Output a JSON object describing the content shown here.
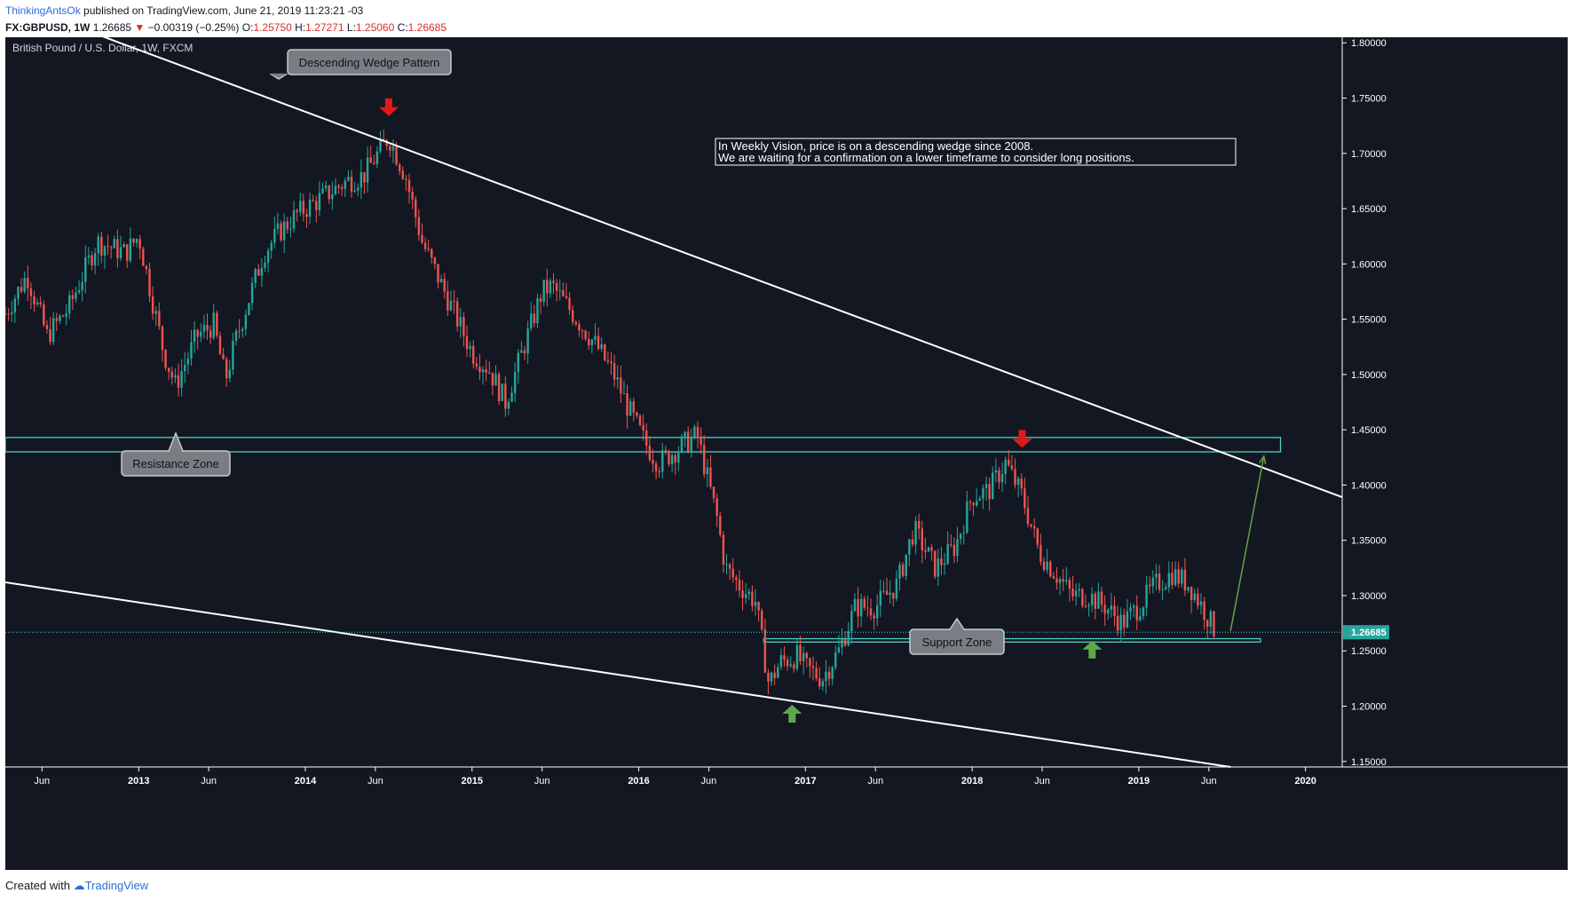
{
  "header": {
    "author": "ThinkingAntsOk",
    "published": "published on TradingView.com, June 21, 2019 11:23:21 -03",
    "symbol": "FX:GBPUSD, 1W",
    "last": "1.26685",
    "change_arrow": "▼",
    "change": "−0.00319 (−0.25%)",
    "o_label": "O:",
    "o": "1.25750",
    "h_label": "H:",
    "h": "1.27271",
    "l_label": "L:",
    "l": "1.25060",
    "c_label": "C:",
    "c": "1.26685"
  },
  "chart_title": "British Pound / U.S. Dollar, 1W, FXCM",
  "footer": {
    "created": "Created with",
    "brand": "TradingView"
  },
  "colors": {
    "background": "#131722",
    "up": "#26a69a",
    "down": "#ef5350",
    "zone": "#4dd0c4",
    "trend_line": "#ffffff",
    "arrow_down": "#e01a1a",
    "arrow_up": "#5fa84a",
    "projection": "#6a9f45",
    "callout_bg": "#7a7d84"
  },
  "annotations": {
    "wedge_label": "Descending Wedge Pattern",
    "resistance_label": "Resistance Zone",
    "support_label": "Support Zone",
    "note_line1": "In Weekly Vision, price is on a descending wedge since 2008.",
    "note_line2": "We are waiting for a confirmation on a lower timeframe to consider long positions."
  },
  "chart_data": {
    "type": "candlestick",
    "symbol": "GBPUSD",
    "timeframe": "1W",
    "ylim": [
      1.145,
      1.805
    ],
    "y_ticks": [
      "1.80000",
      "1.75000",
      "1.70000",
      "1.65000",
      "1.60000",
      "1.55000",
      "1.50000",
      "1.45000",
      "1.40000",
      "1.35000",
      "1.30000",
      "1.25000",
      "1.20000",
      "1.15000"
    ],
    "x_ticks": [
      "Jun",
      "2013",
      "Jun",
      "2014",
      "Jun",
      "2015",
      "Jun",
      "2016",
      "Jun",
      "2017",
      "Jun",
      "2018",
      "Jun",
      "2019",
      "Jun",
      "2020"
    ],
    "x_tick_dates": [
      2012.42,
      2013.0,
      2013.42,
      2014.0,
      2014.42,
      2015.0,
      2015.42,
      2016.0,
      2016.42,
      2017.0,
      2017.42,
      2018.0,
      2018.42,
      2019.0,
      2019.42,
      2020.0
    ],
    "x_range": [
      2012.2,
      2020.22
    ],
    "last_price": "1.26685",
    "price_path": [
      [
        2012.2,
        1.555
      ],
      [
        2012.33,
        1.59
      ],
      [
        2012.45,
        1.535
      ],
      [
        2012.58,
        1.56
      ],
      [
        2012.75,
        1.62
      ],
      [
        2012.92,
        1.61
      ],
      [
        2013.0,
        1.625
      ],
      [
        2013.15,
        1.52
      ],
      [
        2013.22,
        1.49
      ],
      [
        2013.35,
        1.535
      ],
      [
        2013.45,
        1.545
      ],
      [
        2013.52,
        1.495
      ],
      [
        2013.58,
        1.53
      ],
      [
        2013.75,
        1.61
      ],
      [
        2013.85,
        1.63
      ],
      [
        2013.95,
        1.645
      ],
      [
        2014.1,
        1.66
      ],
      [
        2014.25,
        1.675
      ],
      [
        2014.35,
        1.68
      ],
      [
        2014.5,
        1.715
      ],
      [
        2014.6,
        1.68
      ],
      [
        2014.7,
        1.62
      ],
      [
        2014.85,
        1.57
      ],
      [
        2015.0,
        1.52
      ],
      [
        2015.1,
        1.505
      ],
      [
        2015.2,
        1.475
      ],
      [
        2015.3,
        1.52
      ],
      [
        2015.42,
        1.575
      ],
      [
        2015.48,
        1.58
      ],
      [
        2015.58,
        1.56
      ],
      [
        2015.75,
        1.525
      ],
      [
        2015.85,
        1.5
      ],
      [
        2015.95,
        1.465
      ],
      [
        2016.05,
        1.435
      ],
      [
        2016.12,
        1.42
      ],
      [
        2016.25,
        1.435
      ],
      [
        2016.35,
        1.445
      ],
      [
        2016.47,
        1.37
      ],
      [
        2016.52,
        1.325
      ],
      [
        2016.6,
        1.31
      ],
      [
        2016.7,
        1.295
      ],
      [
        2016.78,
        1.22
      ],
      [
        2016.85,
        1.24
      ],
      [
        2016.95,
        1.245
      ],
      [
        2017.0,
        1.235
      ],
      [
        2017.1,
        1.225
      ],
      [
        2017.2,
        1.25
      ],
      [
        2017.3,
        1.29
      ],
      [
        2017.42,
        1.29
      ],
      [
        2017.55,
        1.31
      ],
      [
        2017.65,
        1.36
      ],
      [
        2017.78,
        1.325
      ],
      [
        2017.9,
        1.345
      ],
      [
        2018.0,
        1.39
      ],
      [
        2018.1,
        1.395
      ],
      [
        2018.2,
        1.42
      ],
      [
        2018.3,
        1.39
      ],
      [
        2018.4,
        1.34
      ],
      [
        2018.5,
        1.32
      ],
      [
        2018.6,
        1.3
      ],
      [
        2018.7,
        1.3
      ],
      [
        2018.8,
        1.29
      ],
      [
        2018.9,
        1.275
      ],
      [
        2019.0,
        1.29
      ],
      [
        2019.1,
        1.31
      ],
      [
        2019.2,
        1.32
      ],
      [
        2019.3,
        1.31
      ],
      [
        2019.38,
        1.29
      ],
      [
        2019.45,
        1.27
      ]
    ],
    "resistance_zone": [
      1.43,
      1.443
    ],
    "support_zone": [
      1.258,
      1.261
    ],
    "upper_trend_line": [
      [
        2012.2,
        1.8385
      ],
      [
        2020.22,
        1.389
      ]
    ],
    "lower_trend_line": [
      [
        2012.2,
        1.312
      ],
      [
        2019.55,
        1.145
      ]
    ],
    "projection_line": [
      [
        2019.55,
        1.268
      ],
      [
        2019.75,
        1.426
      ]
    ],
    "down_arrows": [
      [
        2014.5,
        1.745
      ],
      [
        2018.3,
        1.445
      ]
    ],
    "up_arrows": [
      [
        2016.92,
        1.19
      ],
      [
        2018.72,
        1.248
      ]
    ]
  }
}
